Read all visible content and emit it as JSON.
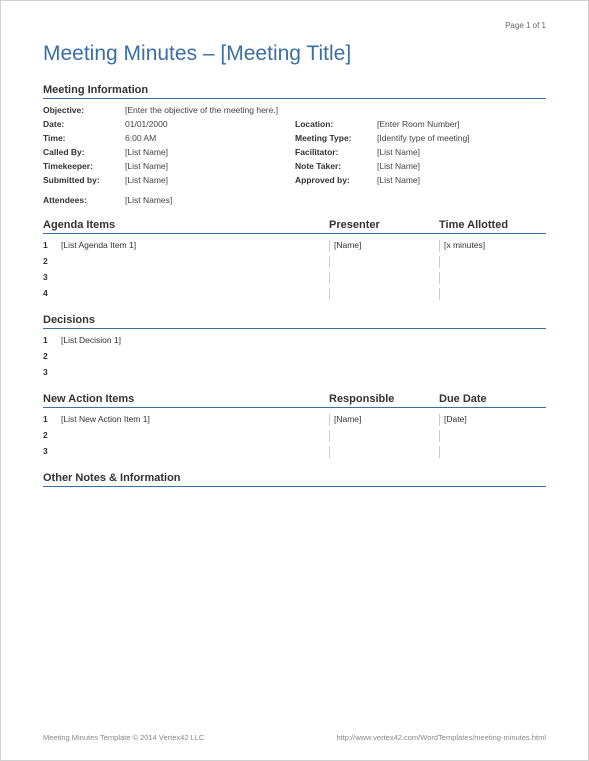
{
  "page_number": "Page 1 of 1",
  "title": "Meeting Minutes – [Meeting Title]",
  "colors": {
    "accent": "#3b6ea5",
    "text": "#333333",
    "muted": "#888888",
    "border_light": "#cccccc",
    "background": "#ffffff"
  },
  "sections": {
    "info": {
      "header": "Meeting Information",
      "objective_label": "Objective:",
      "objective_value": "[Enter the objective of the meeting here.]",
      "rows": [
        {
          "left_label": "Date:",
          "left_value": "01/01/2000",
          "right_label": "Location:",
          "right_value": "[Enter Room Number]"
        },
        {
          "left_label": "Time:",
          "left_value": "6:00 AM",
          "right_label": "Meeting Type:",
          "right_value": "[Identify type of meeting]"
        },
        {
          "left_label": "Called By:",
          "left_value": "[List Name]",
          "right_label": "Facilitator:",
          "right_value": "[List Name]"
        },
        {
          "left_label": "Timekeeper:",
          "left_value": "[List Name]",
          "right_label": "Note Taker:",
          "right_value": "[List Name]"
        },
        {
          "left_label": "Submitted by:",
          "left_value": "[List Name]",
          "right_label": "Approved by:",
          "right_value": "[List Name]"
        }
      ],
      "attendees_label": "Attendees:",
      "attendees_value": "[List Names]"
    },
    "agenda": {
      "header_item": "Agenda Items",
      "header_presenter": "Presenter",
      "header_time": "Time Allotted",
      "rows": [
        {
          "num": "1",
          "item": "[List Agenda Item 1]",
          "presenter": "[Name]",
          "time": "[x minutes]"
        },
        {
          "num": "2",
          "item": "",
          "presenter": "",
          "time": ""
        },
        {
          "num": "3",
          "item": "",
          "presenter": "",
          "time": ""
        },
        {
          "num": "4",
          "item": "",
          "presenter": "",
          "time": ""
        }
      ]
    },
    "decisions": {
      "header": "Decisions",
      "rows": [
        {
          "num": "1",
          "item": "[List Decision 1]"
        },
        {
          "num": "2",
          "item": ""
        },
        {
          "num": "3",
          "item": ""
        }
      ]
    },
    "actions": {
      "header_item": "New Action Items",
      "header_resp": "Responsible",
      "header_due": "Due Date",
      "rows": [
        {
          "num": "1",
          "item": "[List New Action Item 1]",
          "resp": "[Name]",
          "due": "[Date]"
        },
        {
          "num": "2",
          "item": "",
          "resp": "",
          "due": ""
        },
        {
          "num": "3",
          "item": "",
          "resp": "",
          "due": ""
        }
      ]
    },
    "other": {
      "header": "Other Notes & Information"
    }
  },
  "footer": {
    "left": "Meeting Minutes Template © 2014 Vertex42 LLC",
    "right": "http://www.vertex42.com/WordTemplates/meeting-minutes.html"
  }
}
